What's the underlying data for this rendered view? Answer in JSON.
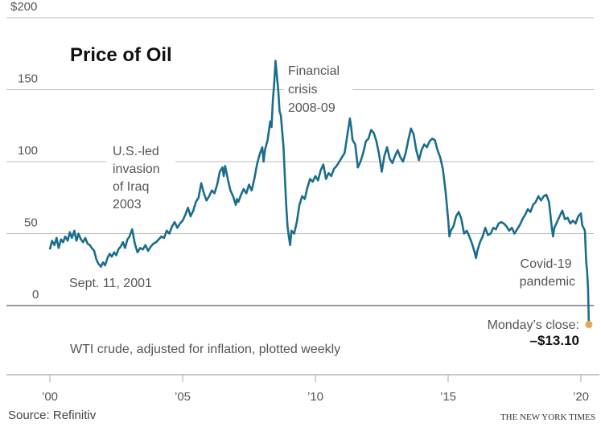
{
  "chart_data": {
    "type": "line",
    "title": "Price of Oil",
    "subtitle": "WTI crude, adjusted for inflation, plotted weekly",
    "source": "Source: Refinitiv",
    "credit": "THE NEW YORK TIMES",
    "xlabel": "",
    "ylabel": "",
    "ylim": [
      0,
      200
    ],
    "xlim": [
      2000,
      2020.3
    ],
    "yticks": [
      {
        "value": 200,
        "label": "$200"
      },
      {
        "value": 150,
        "label": "150"
      },
      {
        "value": 100,
        "label": "100"
      },
      {
        "value": 50,
        "label": "50"
      },
      {
        "value": 0,
        "label": "0"
      }
    ],
    "xticks": [
      {
        "value": 2000,
        "label": "’00"
      },
      {
        "value": 2005,
        "label": "’05"
      },
      {
        "value": 2010,
        "label": "’10"
      },
      {
        "value": 2015,
        "label": "’15"
      },
      {
        "value": 2020,
        "label": "’20"
      }
    ],
    "grid": true,
    "colors": {
      "line": "#1a6e8c",
      "marker": "#e8a54b"
    },
    "annotations": {
      "iraq": [
        "U.S.-led",
        "invasion",
        "of Iraq",
        "2003"
      ],
      "crisis": [
        "Financial",
        "crisis",
        "2008-09"
      ],
      "sept11": "Sept. 11, 2001",
      "covid": [
        "Covid-19",
        "pandemic"
      ],
      "close_label": "Monday’s close:",
      "close_value": "–$13.10"
    },
    "series": [
      {
        "name": "WTI crude (inflation-adjusted)",
        "points": [
          [
            2000.0,
            39
          ],
          [
            2000.08,
            45
          ],
          [
            2000.17,
            42
          ],
          [
            2000.25,
            47
          ],
          [
            2000.33,
            40
          ],
          [
            2000.42,
            46
          ],
          [
            2000.5,
            44
          ],
          [
            2000.58,
            48
          ],
          [
            2000.67,
            45
          ],
          [
            2000.75,
            51
          ],
          [
            2000.83,
            47
          ],
          [
            2000.92,
            52
          ],
          [
            2001.0,
            45
          ],
          [
            2001.08,
            50
          ],
          [
            2001.17,
            46
          ],
          [
            2001.25,
            44
          ],
          [
            2001.33,
            47
          ],
          [
            2001.42,
            43
          ],
          [
            2001.5,
            42
          ],
          [
            2001.58,
            40
          ],
          [
            2001.67,
            38
          ],
          [
            2001.75,
            32
          ],
          [
            2001.83,
            29
          ],
          [
            2001.92,
            27
          ],
          [
            2002.0,
            30
          ],
          [
            2002.08,
            28
          ],
          [
            2002.17,
            33
          ],
          [
            2002.25,
            36
          ],
          [
            2002.33,
            34
          ],
          [
            2002.42,
            37
          ],
          [
            2002.5,
            35
          ],
          [
            2002.58,
            39
          ],
          [
            2002.67,
            41
          ],
          [
            2002.75,
            44
          ],
          [
            2002.83,
            40
          ],
          [
            2002.92,
            46
          ],
          [
            2003.0,
            48
          ],
          [
            2003.1,
            53
          ],
          [
            2003.2,
            43
          ],
          [
            2003.3,
            37
          ],
          [
            2003.4,
            40
          ],
          [
            2003.5,
            39
          ],
          [
            2003.6,
            42
          ],
          [
            2003.7,
            38
          ],
          [
            2003.8,
            41
          ],
          [
            2003.9,
            43
          ],
          [
            2004.0,
            44
          ],
          [
            2004.1,
            46
          ],
          [
            2004.2,
            48
          ],
          [
            2004.3,
            47
          ],
          [
            2004.4,
            52
          ],
          [
            2004.5,
            50
          ],
          [
            2004.6,
            55
          ],
          [
            2004.7,
            58
          ],
          [
            2004.8,
            54
          ],
          [
            2004.9,
            57
          ],
          [
            2005.0,
            59
          ],
          [
            2005.1,
            63
          ],
          [
            2005.2,
            68
          ],
          [
            2005.3,
            62
          ],
          [
            2005.4,
            66
          ],
          [
            2005.5,
            72
          ],
          [
            2005.6,
            75
          ],
          [
            2005.7,
            85
          ],
          [
            2005.8,
            78
          ],
          [
            2005.9,
            73
          ],
          [
            2006.0,
            76
          ],
          [
            2006.1,
            80
          ],
          [
            2006.2,
            78
          ],
          [
            2006.3,
            84
          ],
          [
            2006.4,
            93
          ],
          [
            2006.5,
            96
          ],
          [
            2006.55,
            90
          ],
          [
            2006.6,
            97
          ],
          [
            2006.7,
            88
          ],
          [
            2006.8,
            80
          ],
          [
            2006.9,
            76
          ],
          [
            2007.0,
            70
          ],
          [
            2007.05,
            74
          ],
          [
            2007.1,
            72
          ],
          [
            2007.2,
            77
          ],
          [
            2007.3,
            81
          ],
          [
            2007.4,
            78
          ],
          [
            2007.5,
            84
          ],
          [
            2007.6,
            80
          ],
          [
            2007.7,
            88
          ],
          [
            2007.8,
            98
          ],
          [
            2007.9,
            105
          ],
          [
            2008.0,
            110
          ],
          [
            2008.05,
            100
          ],
          [
            2008.1,
            108
          ],
          [
            2008.2,
            115
          ],
          [
            2008.3,
            128
          ],
          [
            2008.35,
            124
          ],
          [
            2008.4,
            143
          ],
          [
            2008.45,
            155
          ],
          [
            2008.5,
            170
          ],
          [
            2008.55,
            160
          ],
          [
            2008.6,
            150
          ],
          [
            2008.65,
            135
          ],
          [
            2008.7,
            132
          ],
          [
            2008.8,
            110
          ],
          [
            2008.85,
            90
          ],
          [
            2008.9,
            70
          ],
          [
            2008.95,
            55
          ],
          [
            2009.0,
            48
          ],
          [
            2009.05,
            42
          ],
          [
            2009.1,
            52
          ],
          [
            2009.2,
            50
          ],
          [
            2009.3,
            58
          ],
          [
            2009.4,
            70
          ],
          [
            2009.5,
            76
          ],
          [
            2009.6,
            74
          ],
          [
            2009.7,
            82
          ],
          [
            2009.8,
            88
          ],
          [
            2009.9,
            86
          ],
          [
            2010.0,
            90
          ],
          [
            2010.1,
            87
          ],
          [
            2010.2,
            94
          ],
          [
            2010.3,
            98
          ],
          [
            2010.4,
            88
          ],
          [
            2010.5,
            92
          ],
          [
            2010.6,
            90
          ],
          [
            2010.7,
            95
          ],
          [
            2010.8,
            97
          ],
          [
            2010.9,
            100
          ],
          [
            2011.0,
            103
          ],
          [
            2011.1,
            106
          ],
          [
            2011.2,
            118
          ],
          [
            2011.3,
            130
          ],
          [
            2011.35,
            124
          ],
          [
            2011.4,
            115
          ],
          [
            2011.5,
            112
          ],
          [
            2011.6,
            96
          ],
          [
            2011.7,
            100
          ],
          [
            2011.8,
            106
          ],
          [
            2011.9,
            114
          ],
          [
            2012.0,
            116
          ],
          [
            2012.1,
            122
          ],
          [
            2012.2,
            120
          ],
          [
            2012.3,
            114
          ],
          [
            2012.4,
            105
          ],
          [
            2012.5,
            93
          ],
          [
            2012.6,
            104
          ],
          [
            2012.7,
            110
          ],
          [
            2012.8,
            102
          ],
          [
            2012.9,
            99
          ],
          [
            2013.0,
            104
          ],
          [
            2013.1,
            108
          ],
          [
            2013.2,
            103
          ],
          [
            2013.3,
            100
          ],
          [
            2013.4,
            106
          ],
          [
            2013.5,
            115
          ],
          [
            2013.6,
            123
          ],
          [
            2013.7,
            119
          ],
          [
            2013.8,
            108
          ],
          [
            2013.9,
            101
          ],
          [
            2014.0,
            108
          ],
          [
            2014.1,
            112
          ],
          [
            2014.2,
            110
          ],
          [
            2014.3,
            114
          ],
          [
            2014.4,
            116
          ],
          [
            2014.5,
            115
          ],
          [
            2014.6,
            108
          ],
          [
            2014.7,
            103
          ],
          [
            2014.8,
            95
          ],
          [
            2014.9,
            80
          ],
          [
            2015.0,
            60
          ],
          [
            2015.05,
            48
          ],
          [
            2015.1,
            52
          ],
          [
            2015.2,
            55
          ],
          [
            2015.3,
            62
          ],
          [
            2015.4,
            65
          ],
          [
            2015.5,
            60
          ],
          [
            2015.6,
            50
          ],
          [
            2015.7,
            52
          ],
          [
            2015.8,
            48
          ],
          [
            2015.9,
            43
          ],
          [
            2016.0,
            37
          ],
          [
            2016.05,
            33
          ],
          [
            2016.1,
            38
          ],
          [
            2016.2,
            44
          ],
          [
            2016.3,
            48
          ],
          [
            2016.4,
            54
          ],
          [
            2016.5,
            49
          ],
          [
            2016.6,
            50
          ],
          [
            2016.7,
            54
          ],
          [
            2016.8,
            53
          ],
          [
            2016.9,
            57
          ],
          [
            2017.0,
            58
          ],
          [
            2017.1,
            57
          ],
          [
            2017.2,
            55
          ],
          [
            2017.3,
            52
          ],
          [
            2017.4,
            54
          ],
          [
            2017.5,
            50
          ],
          [
            2017.6,
            53
          ],
          [
            2017.7,
            56
          ],
          [
            2017.8,
            60
          ],
          [
            2017.9,
            63
          ],
          [
            2018.0,
            67
          ],
          [
            2018.1,
            65
          ],
          [
            2018.2,
            70
          ],
          [
            2018.3,
            72
          ],
          [
            2018.4,
            76
          ],
          [
            2018.5,
            73
          ],
          [
            2018.6,
            76
          ],
          [
            2018.7,
            77
          ],
          [
            2018.8,
            72
          ],
          [
            2018.9,
            55
          ],
          [
            2018.95,
            48
          ],
          [
            2019.0,
            54
          ],
          [
            2019.1,
            58
          ],
          [
            2019.2,
            62
          ],
          [
            2019.3,
            66
          ],
          [
            2019.4,
            60
          ],
          [
            2019.5,
            61
          ],
          [
            2019.6,
            57
          ],
          [
            2019.7,
            59
          ],
          [
            2019.8,
            57
          ],
          [
            2019.9,
            62
          ],
          [
            2020.0,
            64
          ],
          [
            2020.05,
            56
          ],
          [
            2020.1,
            54
          ],
          [
            2020.15,
            52
          ],
          [
            2020.2,
            30
          ],
          [
            2020.23,
            25
          ],
          [
            2020.27,
            12
          ],
          [
            2020.3,
            -13.1
          ]
        ]
      }
    ],
    "highlight": {
      "x": 2020.3,
      "y": -13.1
    }
  }
}
